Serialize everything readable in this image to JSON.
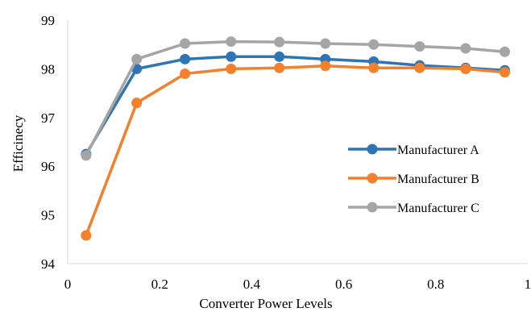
{
  "chart_data": {
    "type": "line",
    "xlabel": "Converter Power Levels",
    "ylabel": "Efficinecy",
    "xlim": [
      0,
      1
    ],
    "ylim": [
      94,
      99
    ],
    "x_ticks": [
      "0",
      "0.2",
      "0.4",
      "0.6",
      "0.8",
      "1"
    ],
    "y_ticks": [
      "94",
      "95",
      "96",
      "97",
      "98",
      "99"
    ],
    "grid": false,
    "legend_position": "right",
    "x": [
      0.04,
      0.15,
      0.255,
      0.355,
      0.46,
      0.56,
      0.665,
      0.765,
      0.865,
      0.95
    ],
    "series": [
      {
        "name": "Manufacturer A",
        "color": "#2E75B6",
        "values": [
          96.25,
          98.0,
          98.2,
          98.25,
          98.25,
          98.2,
          98.15,
          98.07,
          98.02,
          97.97
        ]
      },
      {
        "name": "Manufacturer B",
        "color": "#F4802B",
        "values": [
          94.58,
          97.3,
          97.9,
          98.0,
          98.02,
          98.06,
          98.02,
          98.02,
          98.0,
          97.93
        ]
      },
      {
        "name": "Manufacturer C",
        "color": "#A5A5A5",
        "values": [
          96.22,
          98.2,
          98.52,
          98.56,
          98.55,
          98.52,
          98.5,
          98.46,
          98.42,
          98.35
        ]
      }
    ]
  }
}
